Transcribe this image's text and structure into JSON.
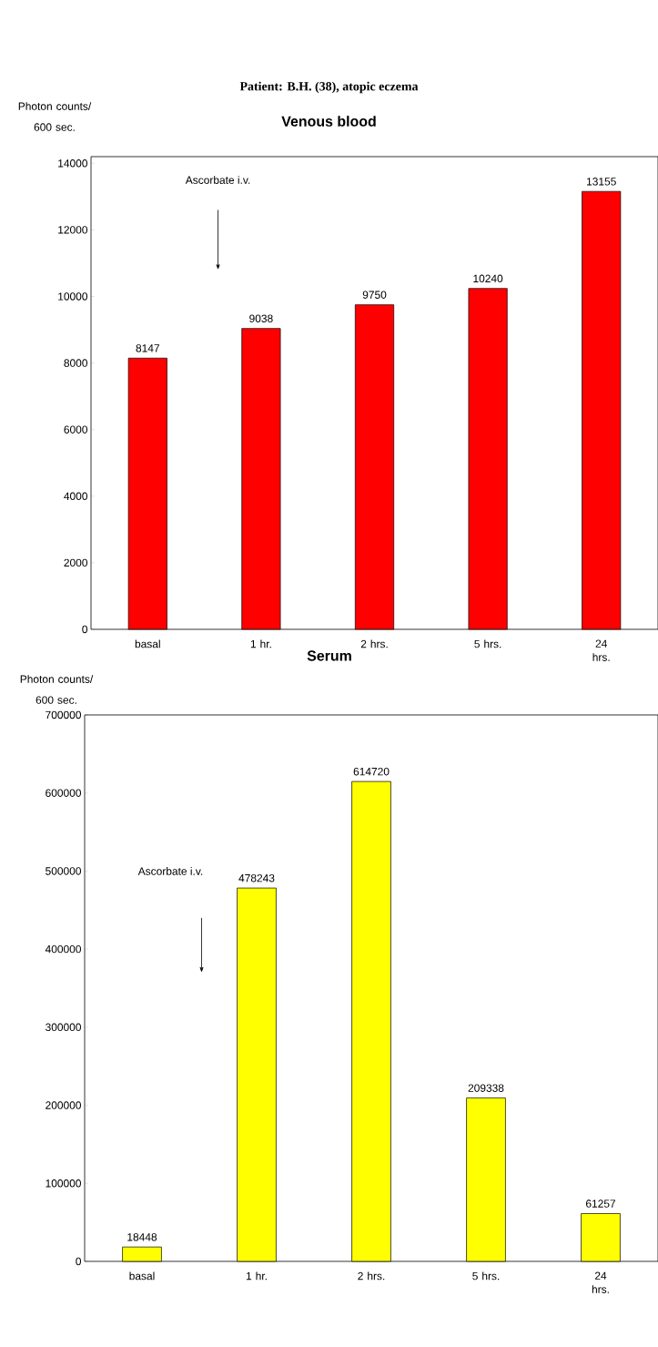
{
  "chart_data": [
    {
      "type": "bar",
      "title": "Patient: B.H. (38), atopic eczema",
      "subtitle": "Venous blood",
      "ylabel": "Photon counts/ 600 sec.",
      "categories": [
        "basal",
        "1 hr.",
        "2 hrs.",
        "5 hrs.",
        "24 hrs."
      ],
      "values": [
        8147,
        9038,
        9750,
        10240,
        13155
      ],
      "color": "#ff0000",
      "ylim": [
        0,
        14200
      ],
      "yticks": [
        0,
        2000,
        4000,
        6000,
        8000,
        10000,
        12000,
        14000
      ],
      "data_labels": true,
      "annotations": [
        "Ascorbate i.v."
      ]
    },
    {
      "type": "bar",
      "title": "Serum",
      "ylabel": "Photon counts/ 600 sec.",
      "categories": [
        "basal",
        "1 hr.",
        "2 hrs.",
        "5 hrs.",
        "24 hrs."
      ],
      "values": [
        18448,
        478243,
        614720,
        209338,
        61257
      ],
      "color": "#ffff00",
      "ylim": [
        0,
        700000
      ],
      "yticks": [
        0,
        100000,
        200000,
        300000,
        400000,
        500000,
        600000,
        700000
      ],
      "data_labels": true,
      "annotations": [
        "Ascorbate i.v."
      ]
    }
  ]
}
